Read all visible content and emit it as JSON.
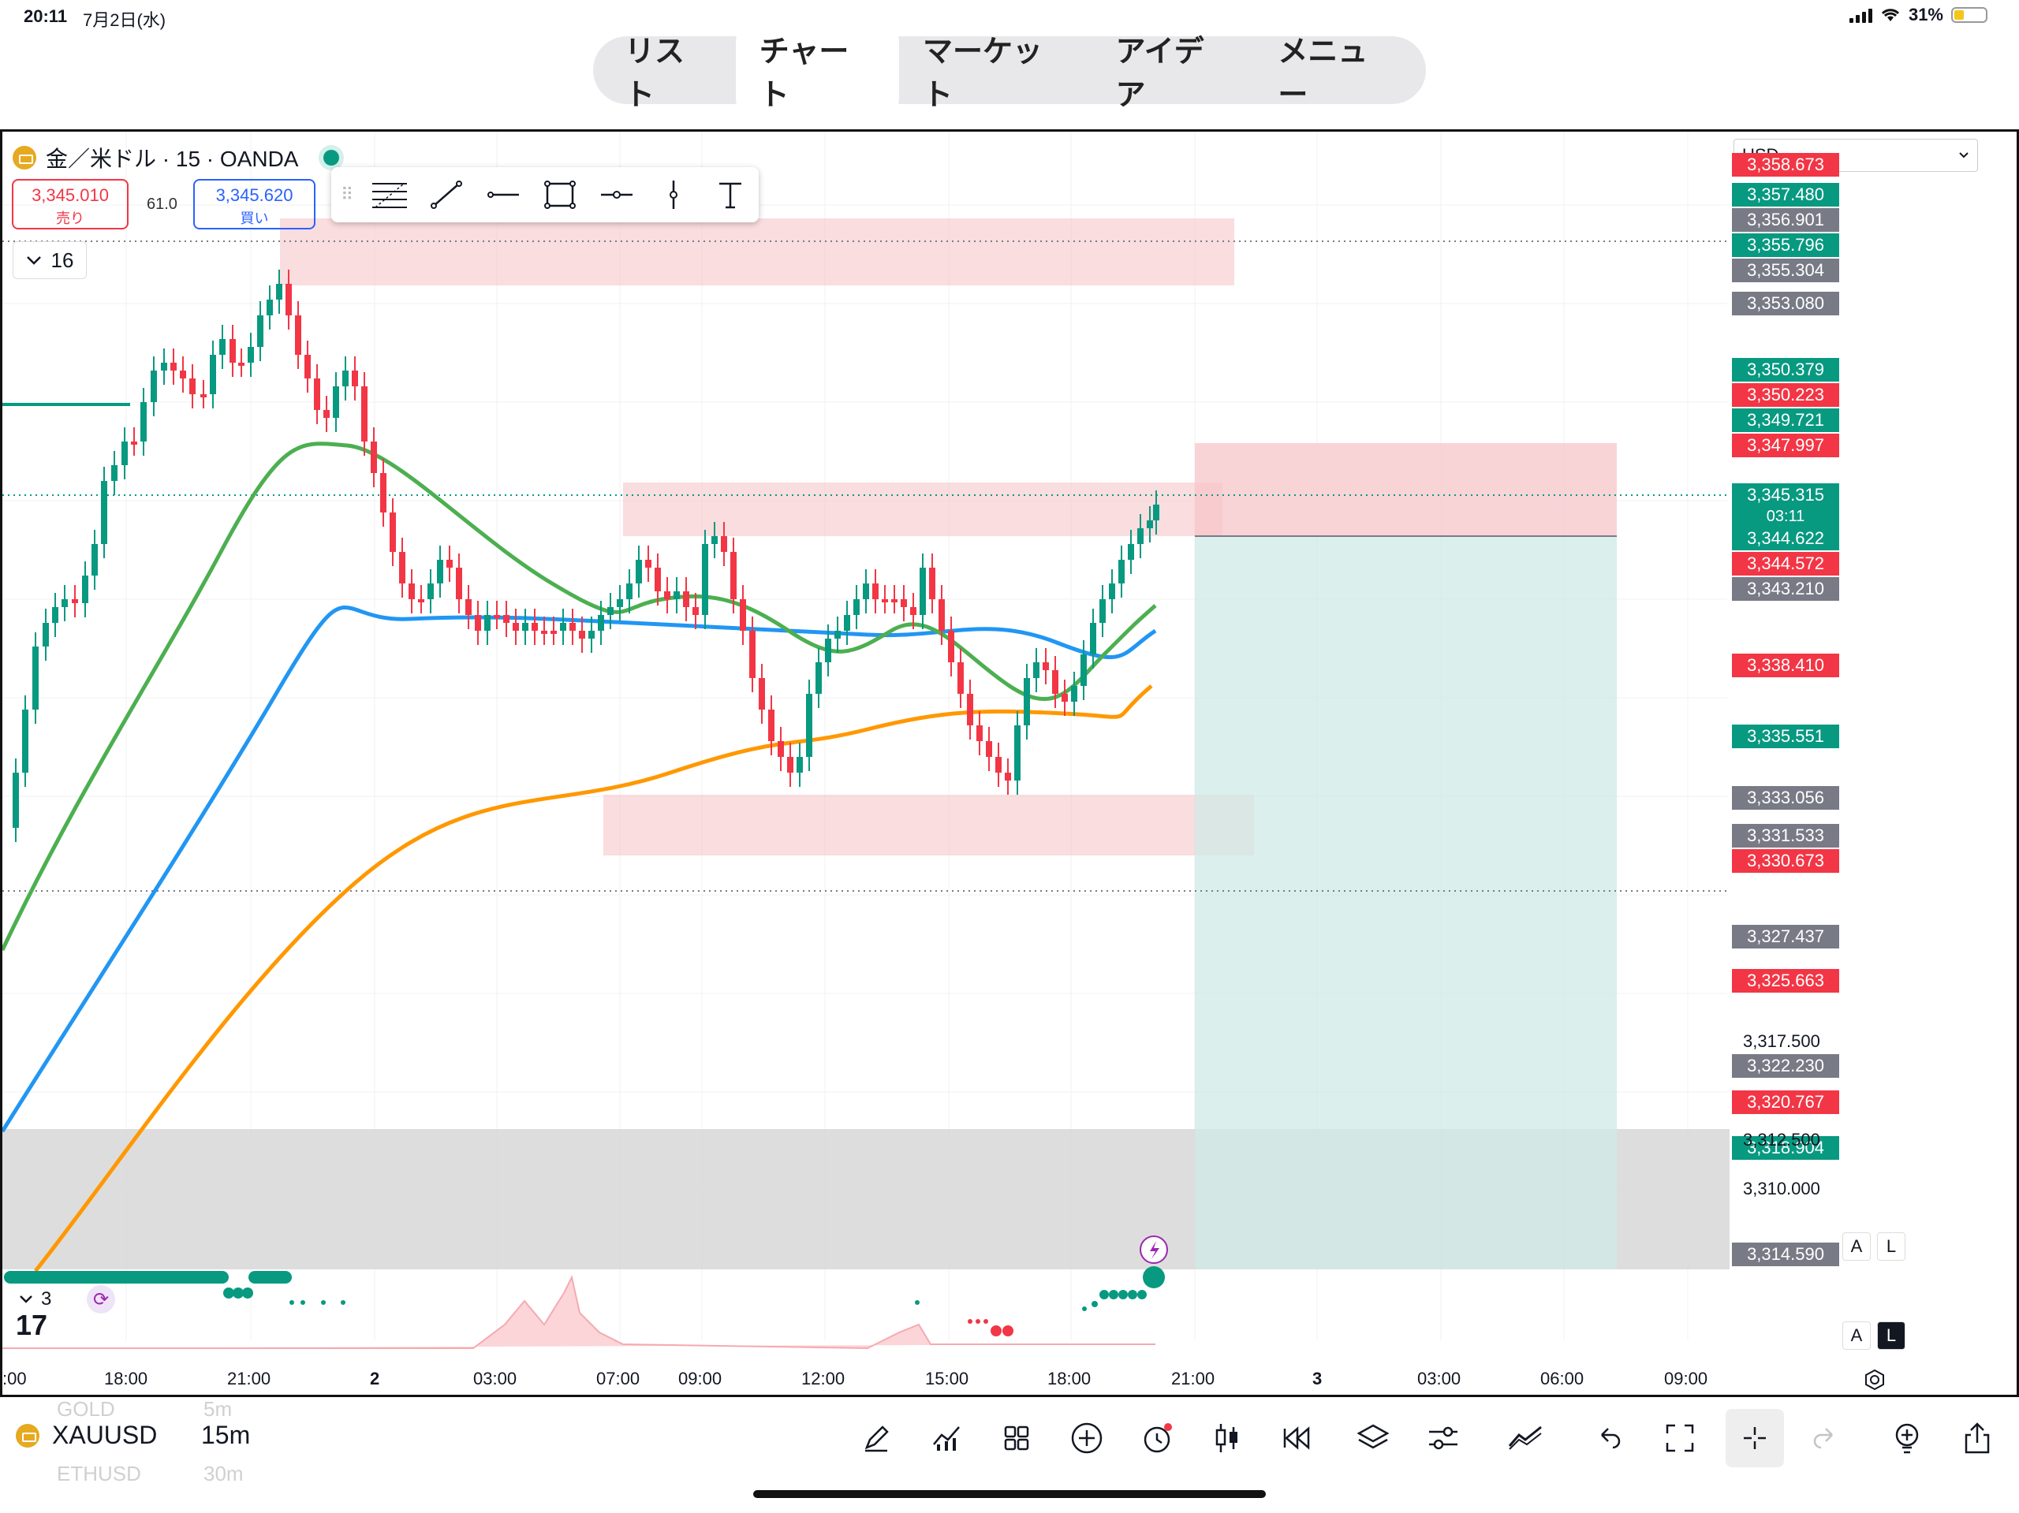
{
  "status_bar": {
    "time": "20:11",
    "date": "7月2日(水)",
    "battery": "31%"
  },
  "tabs": [
    {
      "label": "リスト",
      "active": false
    },
    {
      "label": "チャート",
      "active": true
    },
    {
      "label": "マーケット",
      "active": false
    },
    {
      "label": "アイデア",
      "active": false
    },
    {
      "label": "メニュー",
      "active": false
    }
  ],
  "symbol_header": {
    "title": "金／米ドル · 15 · OANDA"
  },
  "quote": {
    "sell_price": "3,345.010",
    "sell_label": "売り",
    "spread": "61.0",
    "buy_price": "3,345.620",
    "buy_label": "買い"
  },
  "interval_badge": "16",
  "currency": "USD",
  "countdown": "03:11",
  "price_tags": [
    {
      "value": "3,358.673",
      "color": "red"
    },
    {
      "value": "3,357.480",
      "color": "green"
    },
    {
      "value": "3,356.901",
      "color": "gray"
    },
    {
      "value": "3,355.796",
      "color": "green"
    },
    {
      "value": "3,355.304",
      "color": "gray"
    },
    {
      "value": "3,353.080",
      "color": "gray"
    },
    {
      "value": "3,350.379",
      "color": "green"
    },
    {
      "value": "3,350.223",
      "color": "red"
    },
    {
      "value": "3,349.721",
      "color": "green"
    },
    {
      "value": "3,347.997",
      "color": "red"
    },
    {
      "value": "3,345.315",
      "color": "green"
    },
    {
      "value": "3,344.622",
      "color": "green"
    },
    {
      "value": "3,344.572",
      "color": "red"
    },
    {
      "value": "3,343.210",
      "color": "gray"
    },
    {
      "value": "3,338.410",
      "color": "red"
    },
    {
      "value": "3,335.551",
      "color": "green"
    },
    {
      "value": "3,333.056",
      "color": "gray"
    },
    {
      "value": "3,331.533",
      "color": "gray"
    },
    {
      "value": "3,330.673",
      "color": "red"
    },
    {
      "value": "3,327.437",
      "color": "gray"
    },
    {
      "value": "3,325.663",
      "color": "red"
    },
    {
      "value": "3,322.230",
      "color": "gray"
    },
    {
      "value": "3,320.767",
      "color": "red"
    },
    {
      "value": "3,318.904",
      "color": "green"
    },
    {
      "value": "3,314.590",
      "color": "gray"
    }
  ],
  "price_scale": [
    "3,317.500",
    "3,312.500",
    "3,310.000"
  ],
  "time_axis": [
    {
      "label": ":00",
      "bold": false
    },
    {
      "label": "18:00",
      "bold": false
    },
    {
      "label": "21:00",
      "bold": false
    },
    {
      "label": "2",
      "bold": true
    },
    {
      "label": "03:00",
      "bold": false
    },
    {
      "label": "07:00",
      "bold": false
    },
    {
      "label": "09:00",
      "bold": false
    },
    {
      "label": "12:00",
      "bold": false
    },
    {
      "label": "15:00",
      "bold": false
    },
    {
      "label": "18:00",
      "bold": false
    },
    {
      "label": "21:00",
      "bold": false
    },
    {
      "label": "3",
      "bold": true
    },
    {
      "label": "03:00",
      "bold": false
    },
    {
      "label": "06:00",
      "bold": false
    },
    {
      "label": "09:00",
      "bold": false
    }
  ],
  "scale_buttons": {
    "auto": "A",
    "log": "L"
  },
  "sub_pane": {
    "badge": "3"
  },
  "bottom_bar": {
    "symbol": "XAUUSD",
    "interval": "15m",
    "ghost_symbols": [
      "GOLD",
      "ETHUSD"
    ],
    "ghost_intervals": [
      "5m",
      "30m"
    ]
  },
  "colors": {
    "up": "#089981",
    "down": "#f23645",
    "ma_fast": "#4caf50",
    "ma_mid": "#2196f3",
    "ma_slow": "#ff9800",
    "zone": "#f7c6c9",
    "target": "#cfe9e5"
  },
  "icons": [
    "pen-icon",
    "indicators-icon",
    "layouts-icon",
    "add-icon",
    "alert-icon",
    "bar-style-icon",
    "replay-icon",
    "layers-icon",
    "settings-icon",
    "compare-icon",
    "undo-icon",
    "fullscreen-icon",
    "crosshair-icon",
    "redo-icon",
    "ideas-icon",
    "share-icon"
  ]
}
